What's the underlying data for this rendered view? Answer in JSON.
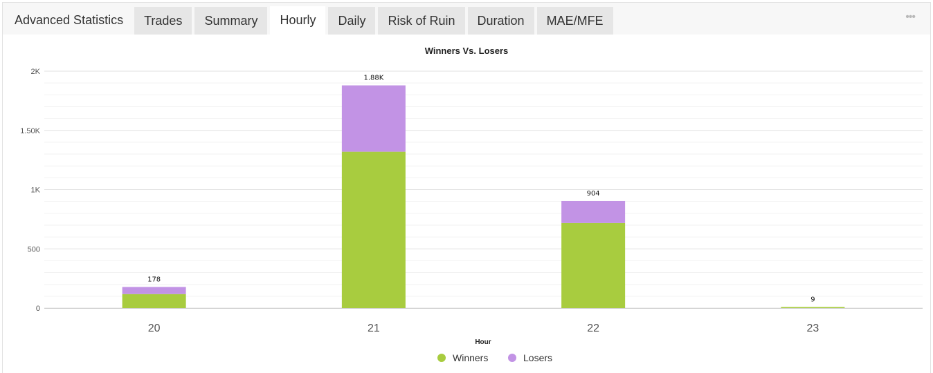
{
  "header": {
    "title": "Advanced Statistics",
    "tabs": [
      {
        "label": "Trades",
        "active": false
      },
      {
        "label": "Summary",
        "active": false
      },
      {
        "label": "Hourly",
        "active": true
      },
      {
        "label": "Daily",
        "active": false
      },
      {
        "label": "Risk of Ruin",
        "active": false
      },
      {
        "label": "Duration",
        "active": false
      },
      {
        "label": "MAE/MFE",
        "active": false
      }
    ],
    "more_icon": "ellipsis-icon",
    "more_glyph": "•••"
  },
  "chart_data": {
    "type": "bar",
    "stacked": true,
    "title": "Winners Vs. Losers",
    "xlabel": "Hour",
    "ylabel": "",
    "categories": [
      "20",
      "21",
      "22",
      "23"
    ],
    "series": [
      {
        "name": "Winners",
        "color": "#a8cc3f",
        "values": [
          118,
          1320,
          718,
          9
        ]
      },
      {
        "name": "Losers",
        "color": "#c293e5",
        "values": [
          60,
          560,
          186,
          0
        ]
      }
    ],
    "totals_labels": [
      "178",
      "1.88K",
      "904",
      "9"
    ],
    "ylim": [
      0,
      2000
    ],
    "yticks": [
      0,
      500,
      1000,
      1500,
      2000
    ],
    "ytick_labels": [
      "0",
      "500",
      "1K",
      "1.50K",
      "2K"
    ],
    "grid": true,
    "legend": "bottom-center"
  }
}
